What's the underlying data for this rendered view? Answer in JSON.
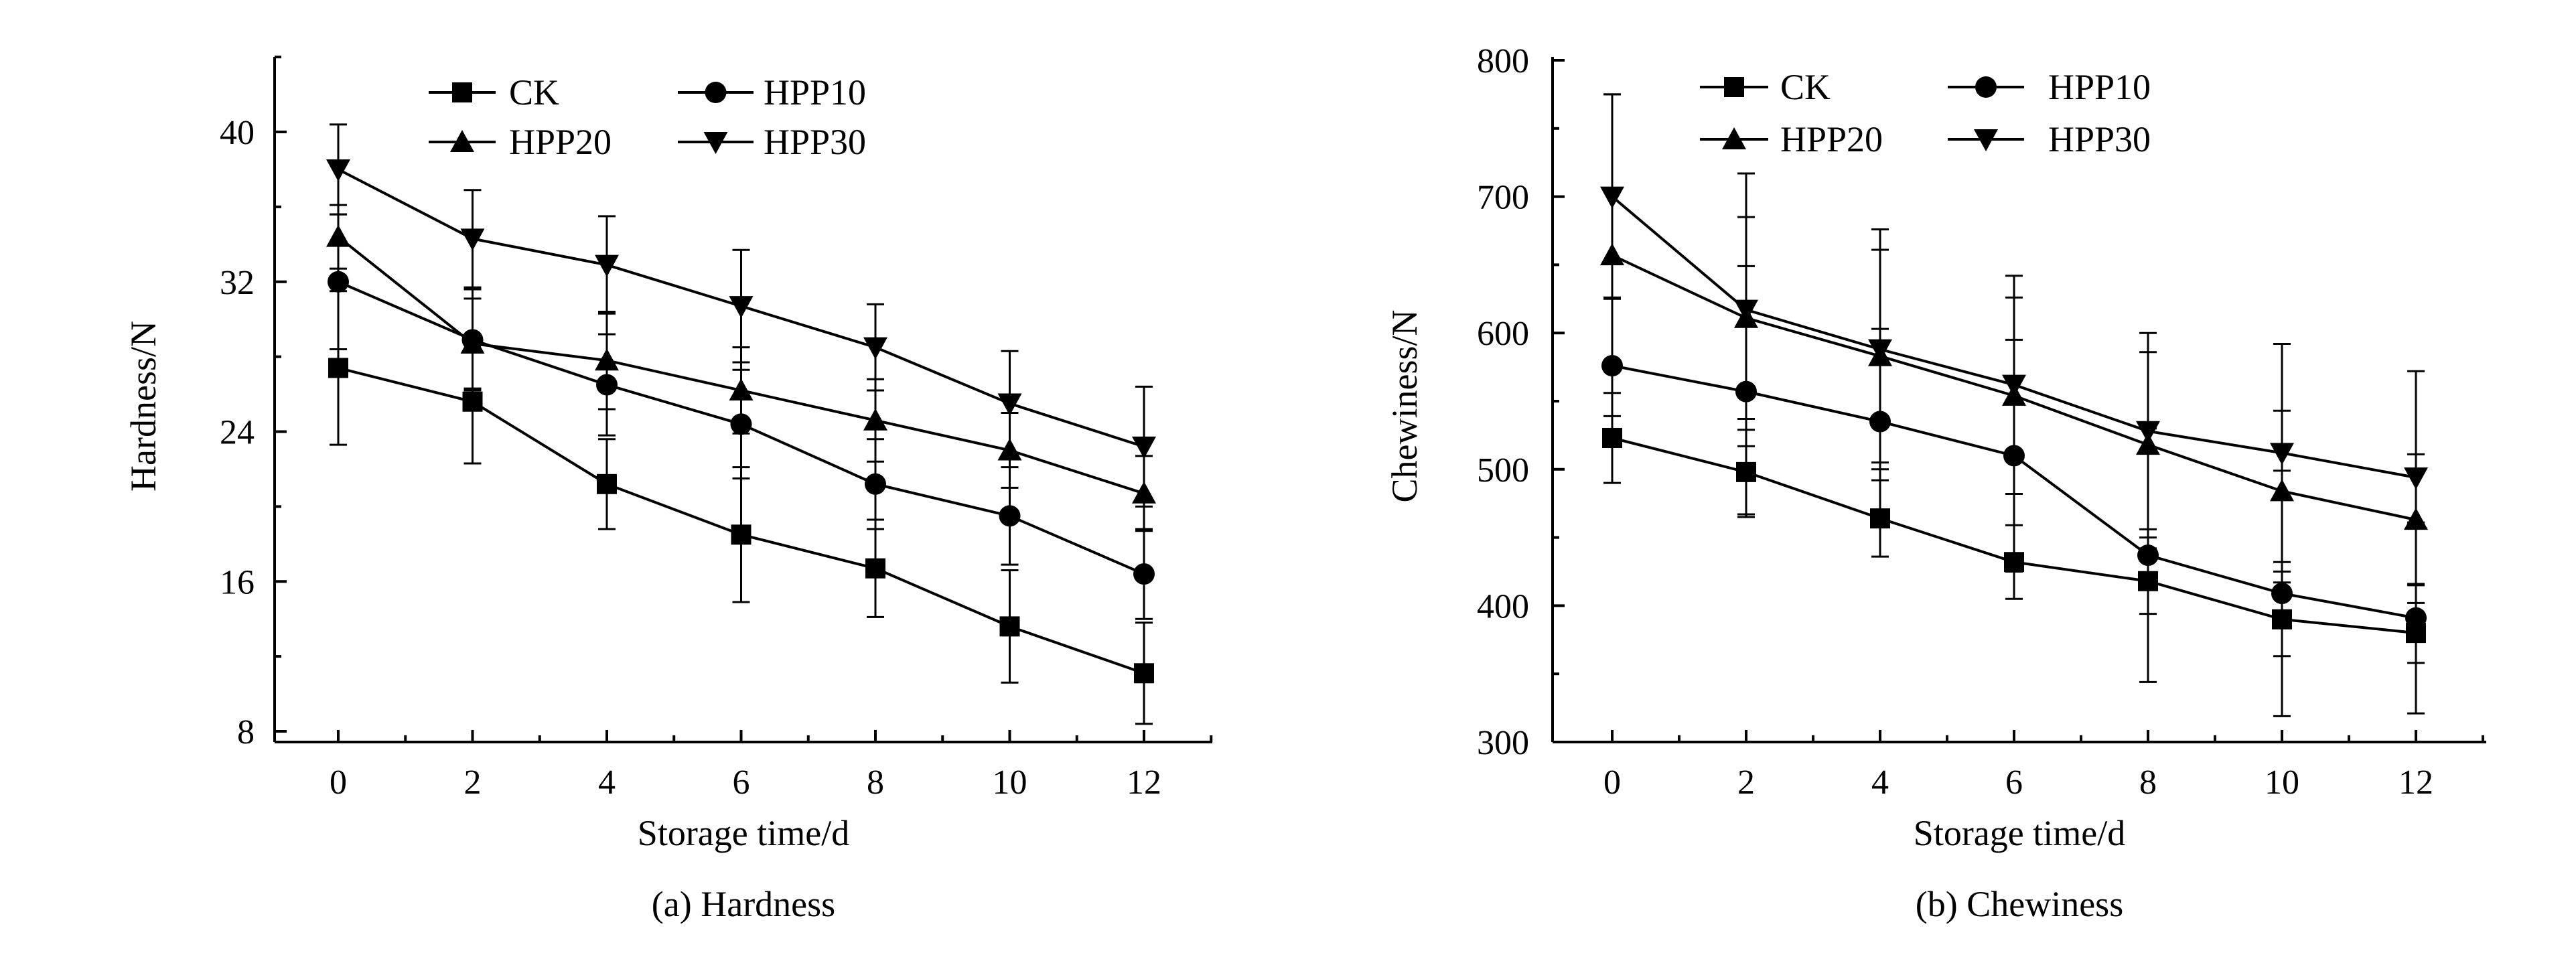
{
  "chart_data": [
    {
      "type": "line",
      "caption": "(a) Hardness",
      "xlabel": "Storage time/d",
      "ylabel": "Hardness/N",
      "x": [
        0,
        2,
        4,
        6,
        8,
        10,
        12
      ],
      "xticks": [
        "0",
        "2",
        "4",
        "6",
        "8",
        "10",
        "12"
      ],
      "yticks": [
        "8",
        "16",
        "24",
        "32",
        "40"
      ],
      "ylim": [
        8,
        44
      ],
      "xlim": [
        -1,
        13
      ],
      "legend_position": "top",
      "series": [
        {
          "name": "CK",
          "marker": "square",
          "values": [
            27.4,
            25.6,
            21.2,
            18.5,
            16.7,
            13.6,
            11.1
          ],
          "errors": [
            4.1,
            3.3,
            2.4,
            3.6,
            2.6,
            3.0,
            2.7
          ]
        },
        {
          "name": "HPP10",
          "marker": "circle",
          "values": [
            32.0,
            28.9,
            26.5,
            24.4,
            21.2,
            19.5,
            16.4
          ],
          "errors": [
            3.6,
            2.7,
            2.7,
            2.9,
            2.4,
            2.6,
            2.4
          ]
        },
        {
          "name": "HPP20",
          "marker": "triangle-up",
          "values": [
            34.4,
            28.7,
            27.8,
            26.2,
            24.6,
            23.0,
            20.7
          ],
          "errors": [
            1.7,
            2.4,
            2.6,
            2.3,
            2.2,
            2.0,
            2.0
          ]
        },
        {
          "name": "HPP30",
          "marker": "triangle-down",
          "values": [
            38.0,
            34.3,
            32.9,
            30.7,
            28.5,
            25.5,
            23.2
          ],
          "errors": [
            2.4,
            2.6,
            2.6,
            3.0,
            2.3,
            2.8,
            3.2
          ]
        }
      ]
    },
    {
      "type": "line",
      "caption": "(b) Chewiness",
      "xlabel": "Storage time/d",
      "ylabel": "Chewiness/N",
      "x": [
        0,
        2,
        4,
        6,
        8,
        10,
        12
      ],
      "xticks": [
        "0",
        "2",
        "4",
        "6",
        "8",
        "10",
        "12"
      ],
      "yticks": [
        "300",
        "400",
        "500",
        "600",
        "700",
        "800"
      ],
      "ylim": [
        300,
        800
      ],
      "xlim": [
        -1,
        13
      ],
      "legend_position": "top",
      "series": [
        {
          "name": "CK",
          "marker": "square",
          "values": [
            523,
            498,
            464,
            432,
            418,
            390,
            380
          ],
          "errors": [
            33,
            31,
            28,
            27,
            24,
            27,
            22
          ]
        },
        {
          "name": "HPP10",
          "marker": "circle",
          "values": [
            576,
            557,
            535,
            510,
            437,
            409,
            391
          ],
          "errors": [
            50,
            92,
            68,
            85,
            93,
            90,
            70
          ]
        },
        {
          "name": "HPP20",
          "marker": "triangle-up",
          "values": [
            657,
            611,
            583,
            554,
            518,
            484,
            463
          ],
          "errors": [
            118,
            74,
            78,
            72,
            68,
            59,
            48
          ]
        },
        {
          "name": "HPP30",
          "marker": "triangle-down",
          "values": [
            700,
            617,
            588,
            562,
            528,
            512,
            494
          ],
          "errors": [
            75,
            100,
            88,
            80,
            72,
            80,
            78
          ]
        }
      ]
    }
  ]
}
